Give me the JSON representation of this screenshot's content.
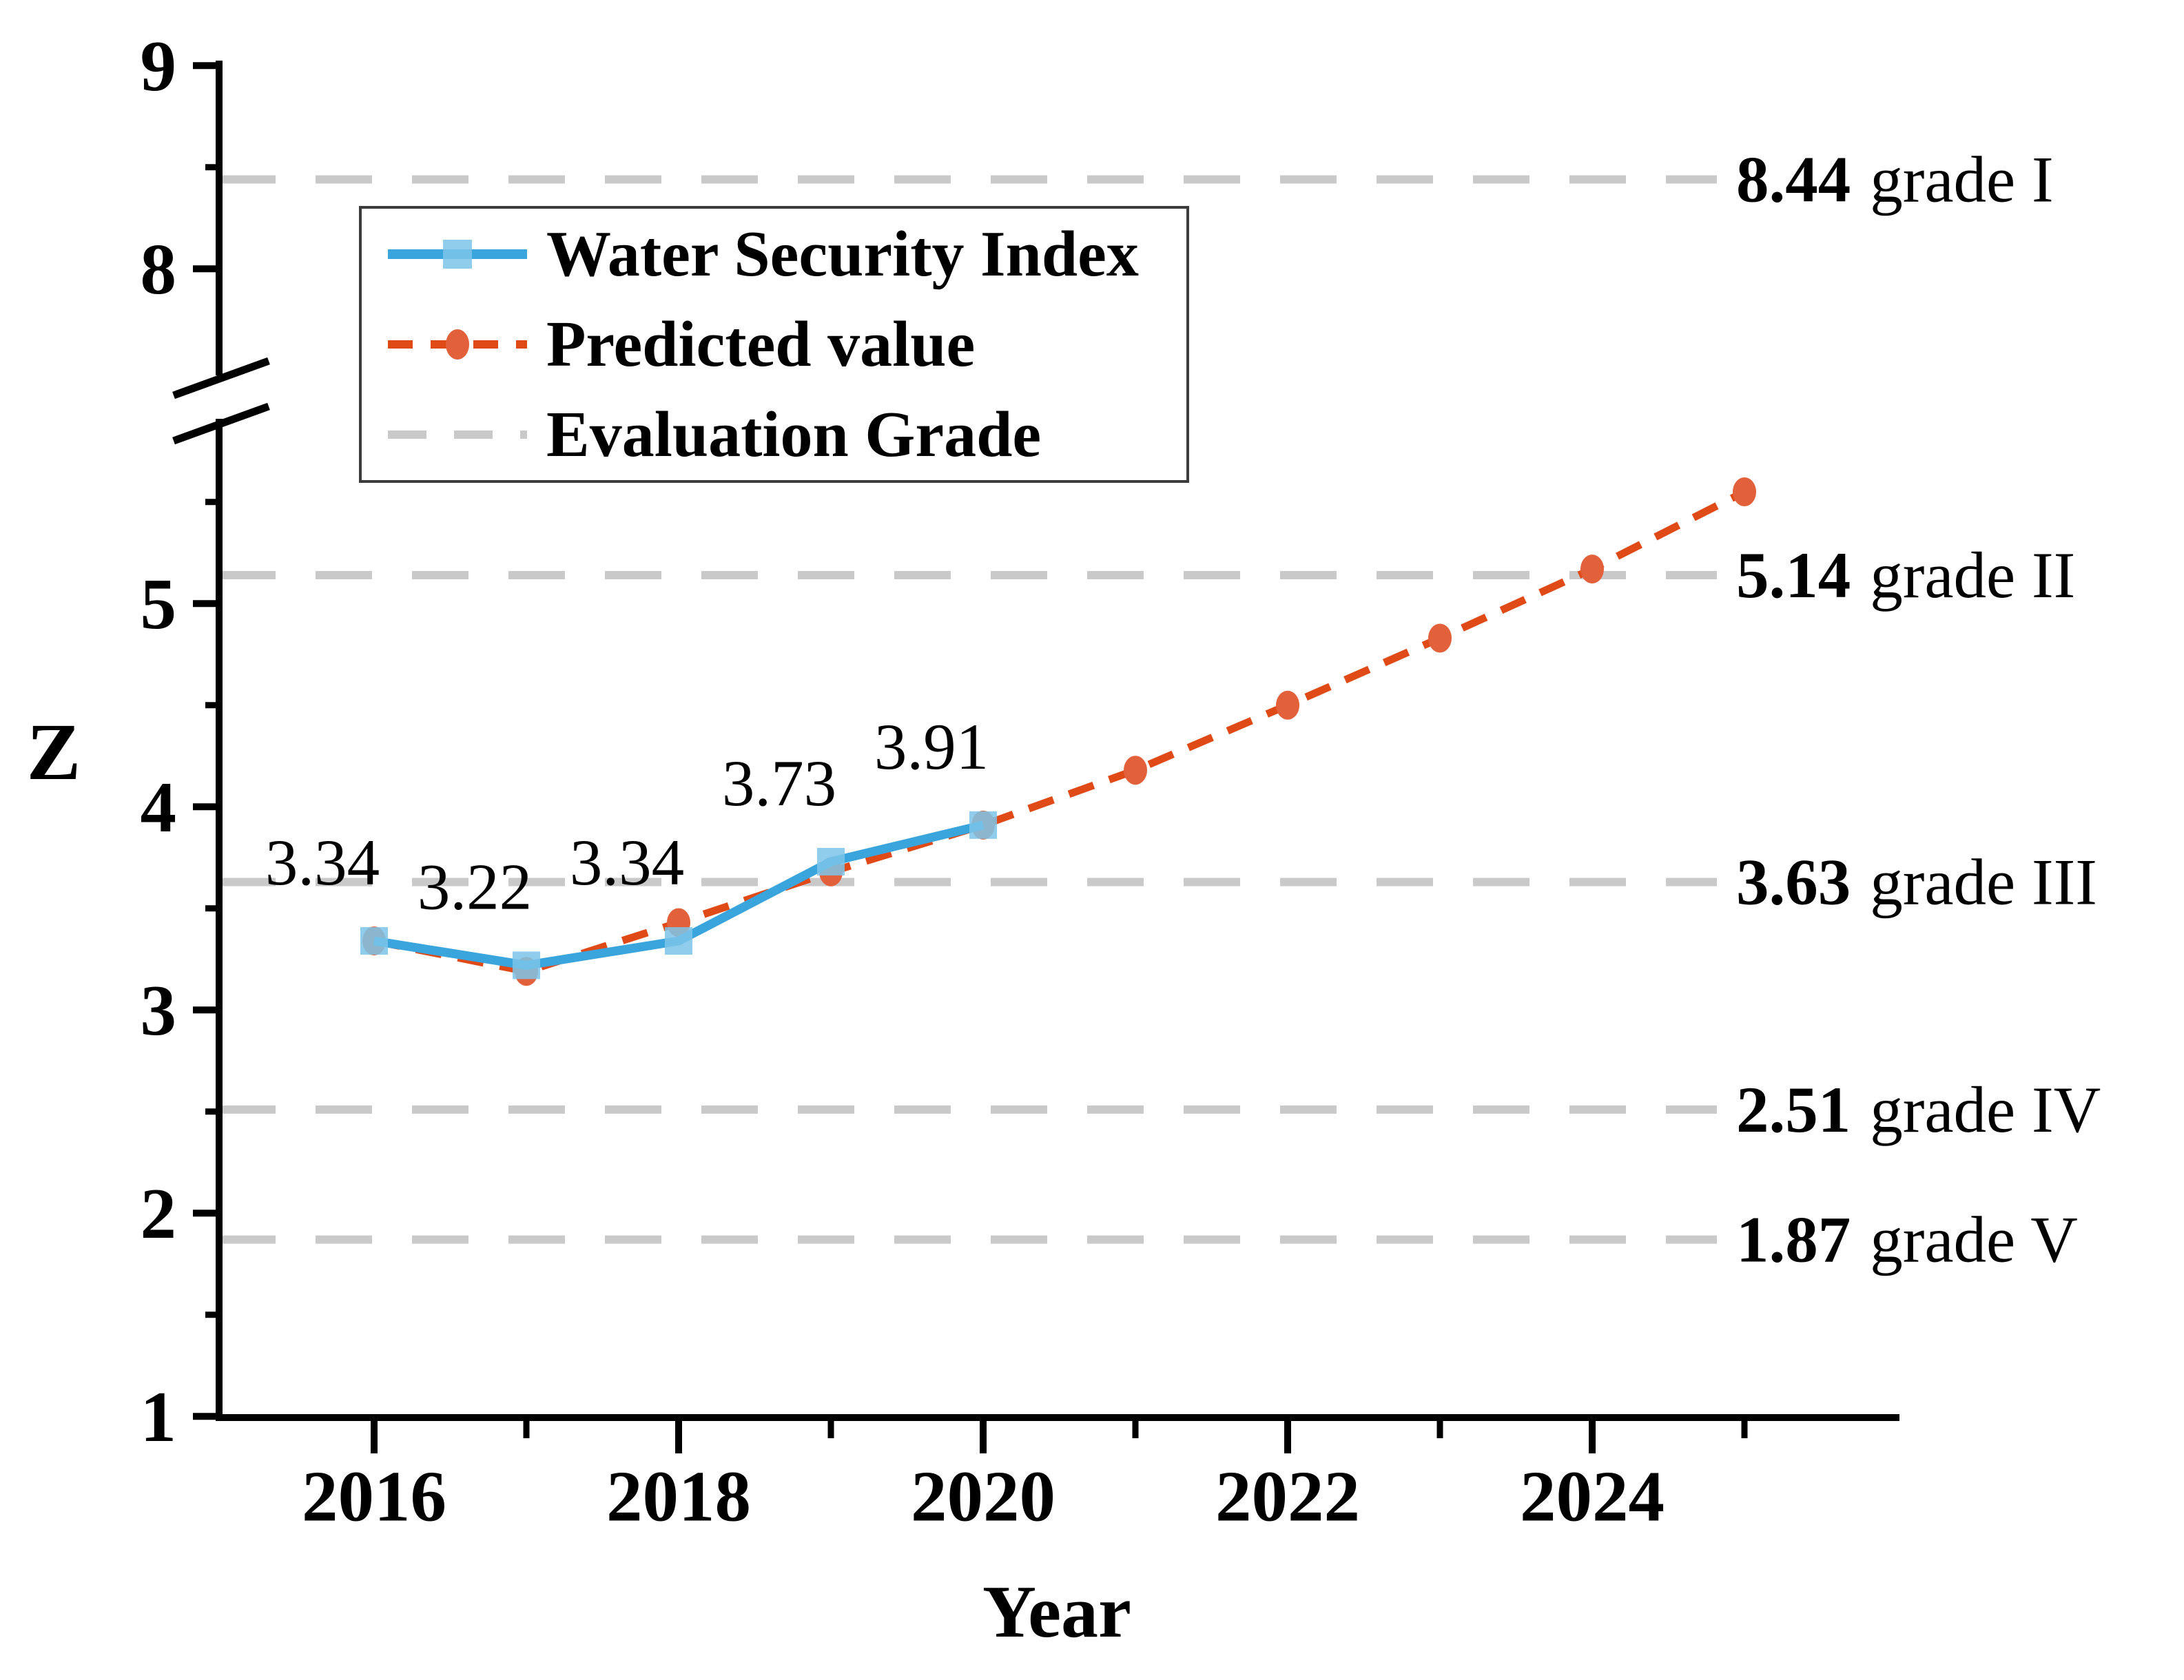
{
  "figure": {
    "xlabel": "Year",
    "ylabel": "Z"
  },
  "legend": {
    "items": [
      {
        "label": "Water Security Index",
        "swatch": "blue-solid-line-square-marker"
      },
      {
        "label": "Predicted value",
        "swatch": "red-dashed-line-circle-marker"
      },
      {
        "label": "Evaluation Grade",
        "swatch": "gray-dashed-line"
      }
    ]
  },
  "chart_data": {
    "type": "line",
    "title": "",
    "xlabel": "Year",
    "ylabel": "Z",
    "x_ticks_labeled": [
      2016,
      2018,
      2020,
      2022,
      2024
    ],
    "x_ticks_minor": [
      2017,
      2019,
      2021,
      2023,
      2025
    ],
    "y_ticks_labeled": [
      1,
      2,
      3,
      4,
      5,
      8,
      9
    ],
    "y_ticks_minor": [
      1.5,
      2.5,
      3.5,
      4.5,
      5.5,
      8.5
    ],
    "y_axis_break_between": [
      5.7,
      7.8
    ],
    "ylim_shown": [
      1,
      9
    ],
    "grid": "horizontal-grade-lines-only",
    "legend_position": "upper-left-inside",
    "series": [
      {
        "name": "Water Security Index",
        "marker": "square",
        "line_style": "solid",
        "color": "#3AA5DC",
        "marker_fill": "#7DC4E9",
        "x": [
          2016,
          2017,
          2018,
          2019,
          2020
        ],
        "values": [
          3.34,
          3.22,
          3.34,
          3.73,
          3.91
        ],
        "point_labels": [
          "3.34",
          "3.22",
          "3.34",
          "3.73",
          "3.91"
        ]
      },
      {
        "name": "Predicted value",
        "marker": "circle",
        "line_style": "dashed",
        "color": "#E04A17",
        "marker_fill": "#E2603A",
        "x": [
          2016,
          2017,
          2018,
          2019,
          2020,
          2021,
          2022,
          2023,
          2024,
          2025
        ],
        "values": [
          3.34,
          3.19,
          3.43,
          3.68,
          3.91,
          4.18,
          4.5,
          4.83,
          5.17,
          5.55
        ]
      }
    ],
    "grade_lines": {
      "name": "Evaluation Grade",
      "color": "#C9C9C9",
      "line_style": "dashed",
      "entries": [
        {
          "value": 8.44,
          "value_label": "8.44",
          "grade_label": "grade I"
        },
        {
          "value": 5.14,
          "value_label": "5.14",
          "grade_label": "grade II"
        },
        {
          "value": 3.63,
          "value_label": "3.63",
          "grade_label": "grade III"
        },
        {
          "value": 2.51,
          "value_label": "2.51",
          "grade_label": "grade IV"
        },
        {
          "value": 1.87,
          "value_label": "1.87",
          "grade_label": "grade V"
        }
      ]
    }
  }
}
